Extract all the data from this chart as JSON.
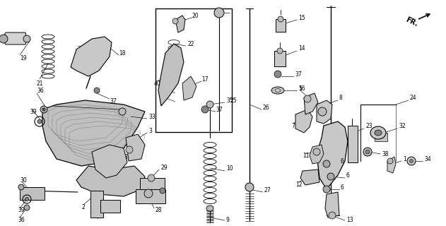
{
  "bg_color": "#ffffff",
  "fig_width": 6.31,
  "fig_height": 3.2,
  "dpi": 100,
  "xlim": [
    0,
    631
  ],
  "ylim": [
    0,
    320
  ]
}
